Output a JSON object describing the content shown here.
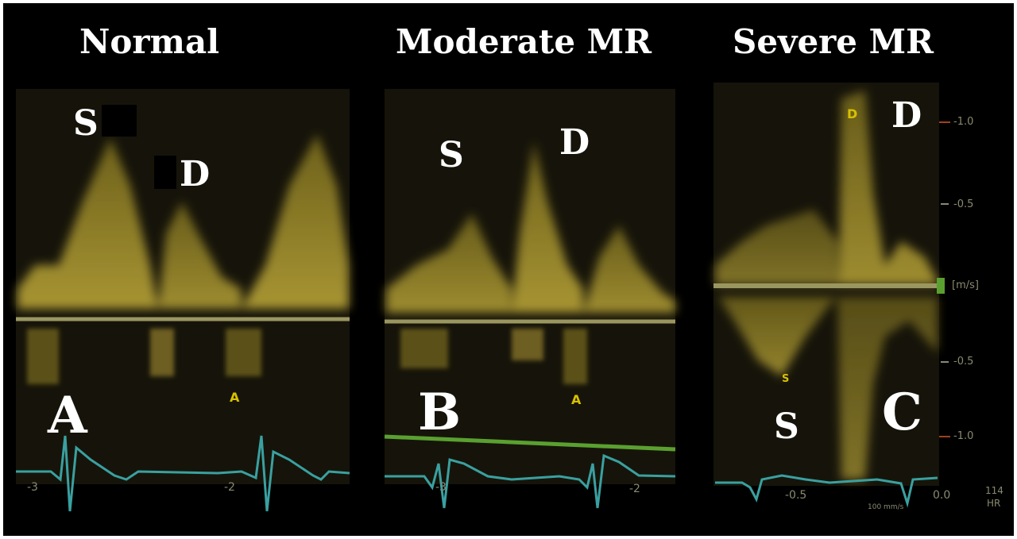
{
  "panels": [
    {
      "title": "Normal",
      "letter": "A",
      "wave_labels": [
        "S",
        "D"
      ],
      "small_label": "A",
      "ecg_ticks": [
        "-3",
        "-2"
      ]
    },
    {
      "title": "Moderate MR",
      "letter": "B",
      "wave_labels": [
        "S",
        "D"
      ],
      "small_label": "A",
      "ecg_ticks": [
        "-3",
        "-2"
      ]
    },
    {
      "title": "Severe MR",
      "letter": "C",
      "wave_labels": [
        "D",
        "S"
      ],
      "small_labels": [
        "D",
        "S"
      ],
      "scale": {
        "ticks": [
          "-1.0",
          "-0.5",
          "-0.5",
          "-1.0"
        ],
        "unit": "[m/s]"
      },
      "ecg_ticks": [
        "-0.5",
        "0.0"
      ],
      "sweep_label": "100 mm/s",
      "hr_value": "114",
      "hr_unit": "HR"
    }
  ],
  "colors": {
    "doppler": "#c8b030",
    "baseline": "#9a9660",
    "ecg": "#3aa0a0",
    "green_line": "#5aa030",
    "label": "#ffffff"
  }
}
